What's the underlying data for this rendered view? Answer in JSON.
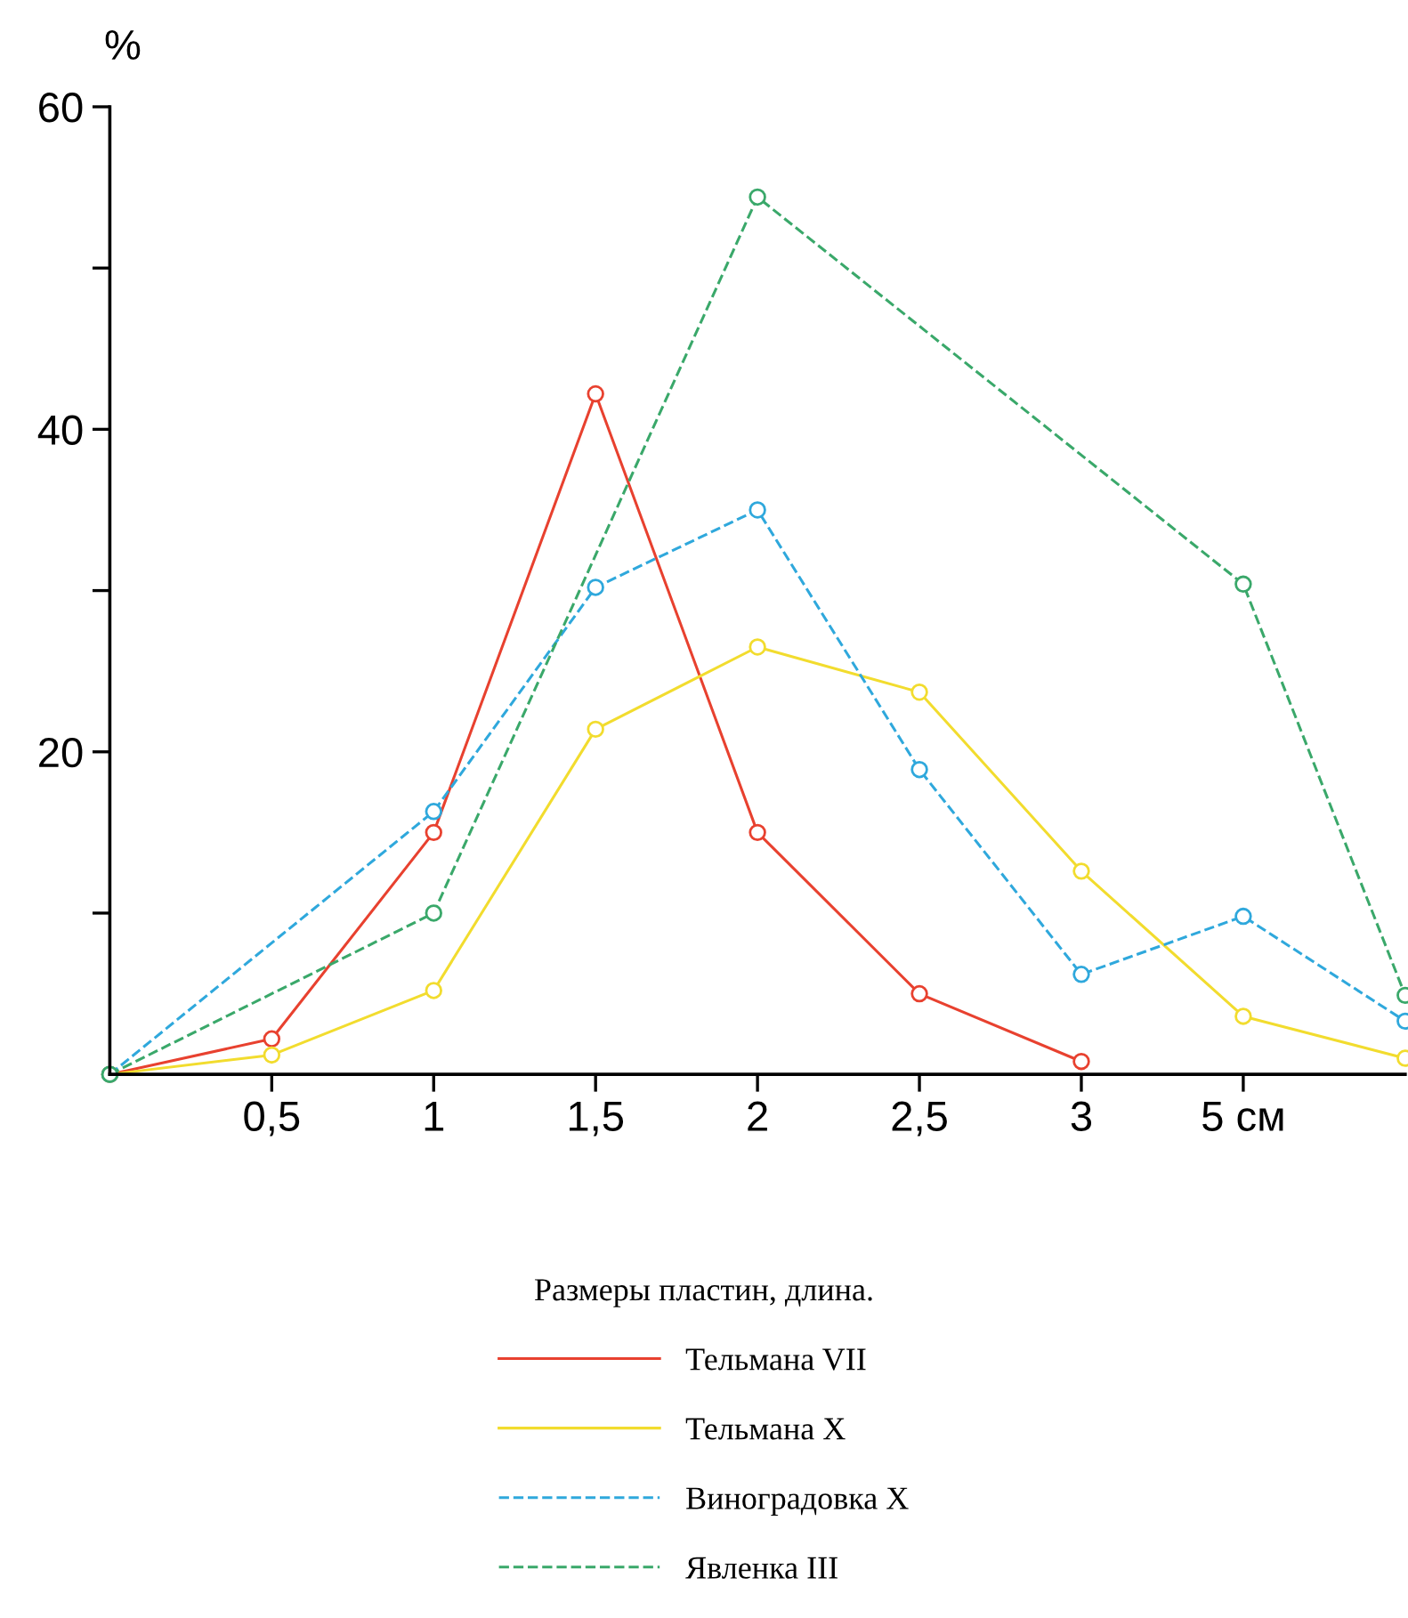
{
  "chart_data": {
    "type": "line",
    "ylabel": "%",
    "legend_title": "Размеры пластин, длина.",
    "categories": [
      null,
      "0,5",
      "1",
      "1,5",
      "2",
      "2,5",
      "3",
      "5 см",
      null
    ],
    "ylim": [
      0,
      60
    ],
    "yticks": [
      {
        "value": 10,
        "label": null
      },
      20,
      {
        "value": 30,
        "label": null
      },
      40,
      {
        "value": 50,
        "label": null
      },
      60
    ],
    "grid": false,
    "legend": "bottom",
    "marker": "circle",
    "series": [
      {
        "name": "Тельмана VII",
        "color": "#e8412f",
        "line_style": "solid",
        "values": [
          0,
          2.2,
          15.0,
          42.2,
          15.0,
          5.0,
          0.8,
          null,
          null
        ]
      },
      {
        "name": "Тельмана X",
        "color": "#f2dc2e",
        "line_style": "solid",
        "values": [
          0,
          1.2,
          5.2,
          21.4,
          26.5,
          23.7,
          12.6,
          3.6,
          1.0
        ]
      },
      {
        "name": "Виноградовка X",
        "color": "#2fa8dc",
        "line_style": "dashed",
        "values": [
          0,
          null,
          16.3,
          30.2,
          35.0,
          18.9,
          6.2,
          9.8,
          3.3
        ]
      },
      {
        "name": "Явленка III",
        "color": "#3aa86a",
        "line_style": "dashed",
        "values": [
          0,
          null,
          10.0,
          null,
          54.4,
          null,
          null,
          30.4,
          4.9
        ]
      }
    ]
  }
}
